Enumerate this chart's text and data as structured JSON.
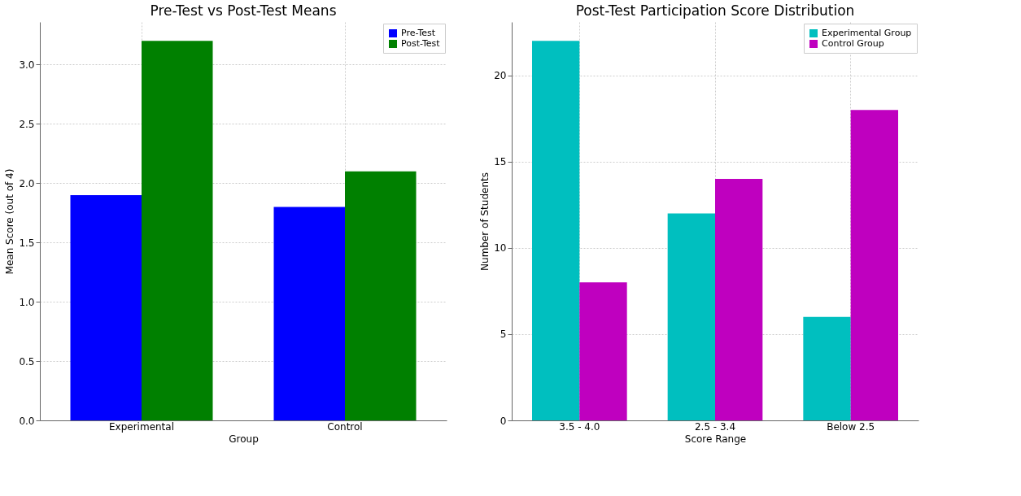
{
  "chart_data": [
    {
      "type": "bar",
      "title": "Pre-Test vs Post-Test Means",
      "xlabel": "Group",
      "ylabel": "Mean Score (out of 4)",
      "categories": [
        "Experimental",
        "Control"
      ],
      "series": [
        {
          "name": "Pre-Test",
          "color": "#0000ff",
          "values": [
            1.9,
            1.8
          ]
        },
        {
          "name": "Post-Test",
          "color": "#008000",
          "values": [
            3.2,
            2.1
          ]
        }
      ],
      "ylim": [
        0,
        3.36
      ],
      "yticks": [
        {
          "value": 0,
          "label": "0.0"
        },
        0.5,
        {
          "value": 1,
          "label": "1.0"
        },
        1.5,
        {
          "value": 2,
          "label": "2.0"
        },
        2.5,
        {
          "value": 3,
          "label": "3.0"
        }
      ],
      "grid": true,
      "legend": "top right"
    },
    {
      "type": "bar",
      "title": "Post-Test Participation Score Distribution",
      "xlabel": "Score Range",
      "ylabel": "Number of Students",
      "categories": [
        "3.5 - 4.0",
        "2.5 - 3.4",
        "Below 2.5"
      ],
      "series": [
        {
          "name": "Experimental Group",
          "color": "#00bfbf",
          "values": [
            22,
            12,
            6
          ]
        },
        {
          "name": "Control Group",
          "color": "#bf00bf",
          "values": [
            8,
            14,
            18
          ]
        }
      ],
      "ylim": [
        0,
        23.1
      ],
      "yticks": [
        0,
        5,
        10,
        15,
        20
      ],
      "grid": true,
      "legend": "top right"
    }
  ]
}
